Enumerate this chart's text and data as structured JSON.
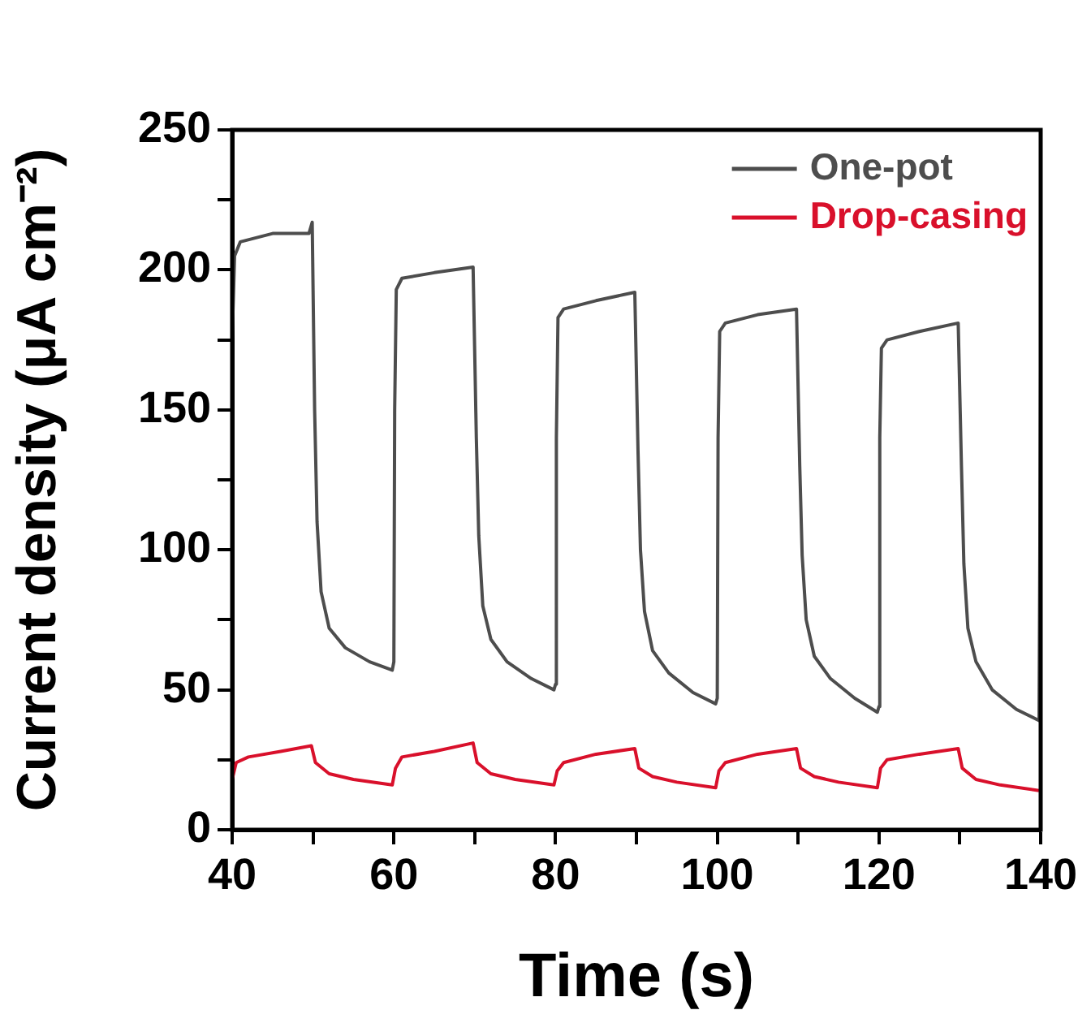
{
  "chart_data": {
    "type": "line",
    "xlabel": "Time (s)",
    "ylabel": "Current density (μA cm⁻²)",
    "xlim": [
      40,
      140
    ],
    "xticks": [
      40,
      {
        "value": 50,
        "label": null
      },
      60,
      {
        "value": 70,
        "label": null
      },
      80,
      {
        "value": 90,
        "label": null
      },
      100,
      {
        "value": 110,
        "label": null
      },
      120,
      {
        "value": 130,
        "label": null
      },
      140
    ],
    "ylim": [
      0,
      250
    ],
    "yticks": [
      0,
      {
        "value": 25,
        "label": null
      },
      50,
      {
        "value": 75,
        "label": null
      },
      100,
      {
        "value": 125,
        "label": null
      },
      150,
      {
        "value": 175,
        "label": null
      },
      200,
      {
        "value": 225,
        "label": null
      },
      250
    ],
    "grid": false,
    "legend": "top right",
    "marker": "none",
    "line_style": "solid",
    "series": [
      {
        "name": "One-pot",
        "color": "#4d4d4d",
        "x": [
          40,
          40.3,
          41,
          45,
          49.5,
          49.9,
          50.2,
          50.5,
          51,
          52,
          54,
          57,
          59.8,
          60,
          60.1,
          60.3,
          61,
          65,
          69.8,
          70.2,
          70.5,
          71,
          72,
          74,
          77,
          79.8,
          80,
          80.1,
          80.3,
          81,
          85,
          89.8,
          90.2,
          90.5,
          91,
          92,
          94,
          97,
          99.8,
          100,
          100.1,
          100.3,
          101,
          105,
          109.8,
          110.2,
          110.5,
          111,
          112,
          114,
          117,
          119.8,
          120,
          120.1,
          120.3,
          121,
          125,
          129.8,
          130.2,
          130.5,
          131,
          132,
          134,
          137,
          139.8,
          140
        ],
        "values": [
          175,
          205,
          210,
          213,
          213,
          217,
          150,
          110,
          85,
          72,
          65,
          60,
          57,
          60,
          150,
          193,
          197,
          199,
          201,
          140,
          105,
          80,
          68,
          60,
          54,
          50,
          52,
          140,
          183,
          186,
          189,
          192,
          135,
          100,
          78,
          64,
          56,
          49,
          45,
          47,
          140,
          178,
          181,
          184,
          186,
          130,
          98,
          75,
          62,
          54,
          47,
          42,
          44,
          140,
          172,
          175,
          178,
          181,
          130,
          95,
          72,
          60,
          50,
          43,
          39,
          165
        ]
      },
      {
        "name": "Drop-casing",
        "color": "#d9102b",
        "x": [
          40,
          40.5,
          42,
          46,
          49.8,
          50.3,
          52,
          55,
          59.8,
          60.2,
          61,
          65,
          69.8,
          70.3,
          72,
          75,
          79.8,
          80.2,
          81,
          85,
          89.8,
          90.3,
          92,
          95,
          99.8,
          100.2,
          101,
          105,
          109.8,
          110.3,
          112,
          115,
          119.8,
          120.2,
          121,
          125,
          129.8,
          130.3,
          132,
          135,
          139.8
        ],
        "values": [
          18,
          24,
          26,
          28,
          30,
          24,
          20,
          18,
          16,
          22,
          26,
          28,
          31,
          24,
          20,
          18,
          16,
          21,
          24,
          27,
          29,
          22,
          19,
          17,
          15,
          21,
          24,
          27,
          29,
          22,
          19,
          17,
          15,
          22,
          25,
          27,
          29,
          22,
          18,
          16,
          14
        ]
      }
    ]
  }
}
